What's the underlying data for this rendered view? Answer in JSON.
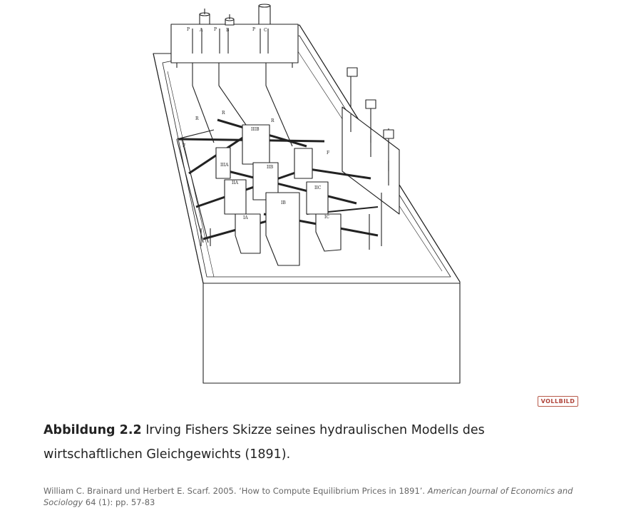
{
  "figure": {
    "sketch_labels": {
      "top_gauges": [
        "P",
        "A",
        "P",
        "B",
        "P",
        "C"
      ],
      "r_labels": [
        "R",
        "R",
        "R"
      ],
      "f_labels": [
        "F",
        "F"
      ],
      "cisterns": [
        "IIIB",
        "IIIA",
        "IIB",
        "IIA",
        "IIC",
        "IB",
        "IA",
        "IC"
      ]
    },
    "fullscreen_label": "VOLLBILD"
  },
  "caption": {
    "label": "Abbildung 2.2",
    "text": " Irving Fishers Skizze seines hydraulischen Modells des wirtschaftlichen Gleichgewichts (1891)."
  },
  "source": {
    "authors_title": "William C. Brainard und Herbert E. Scarf. 2005. ‘How to Compute Equilibrium Prices in 1891’. ",
    "journal": "American Journal of Economics and Sociology",
    "issue": " 64 (1): pp. 57-83"
  }
}
